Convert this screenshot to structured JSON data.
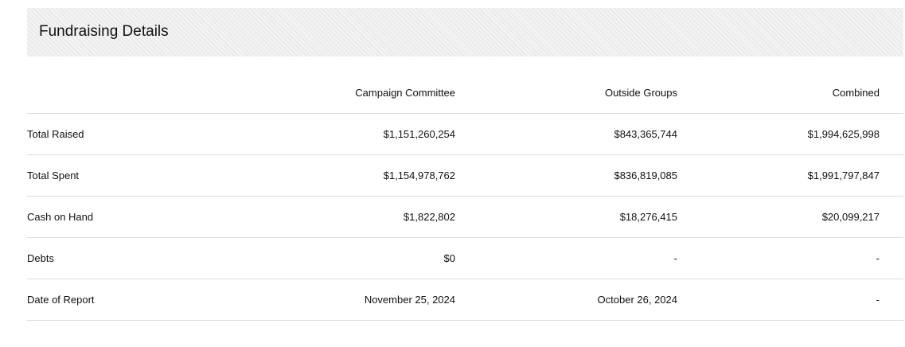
{
  "section": {
    "title": "Fundraising Details"
  },
  "table": {
    "headers": {
      "label": "",
      "campaign": "Campaign Committee",
      "outside": "Outside Groups",
      "combined": "Combined"
    },
    "rows": [
      {
        "label": "Total Raised",
        "campaign": "$1,151,260,254",
        "outside": "$843,365,744",
        "combined": "$1,994,625,998"
      },
      {
        "label": "Total Spent",
        "campaign": "$1,154,978,762",
        "outside": "$836,819,085",
        "combined": "$1,991,797,847"
      },
      {
        "label": "Cash on Hand",
        "campaign": "$1,822,802",
        "outside": "$18,276,415",
        "combined": "$20,099,217"
      },
      {
        "label": "Debts",
        "campaign": "$0",
        "outside": "-",
        "combined": "-"
      },
      {
        "label": "Date of Report",
        "campaign": "November 25, 2024",
        "outside": "October 26, 2024",
        "combined": "-"
      }
    ]
  }
}
